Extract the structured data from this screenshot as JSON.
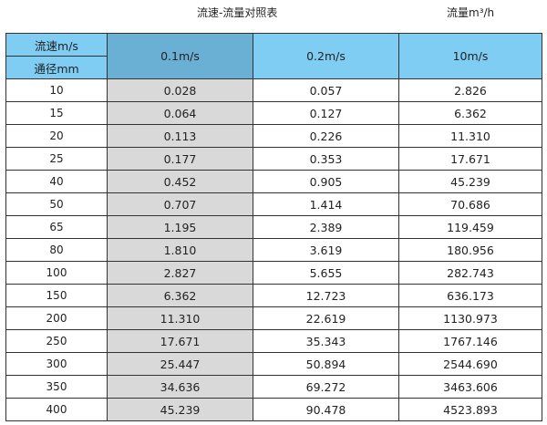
{
  "title": "流速-流量对照表",
  "unit_label": "流量m³/h",
  "colors": {
    "header": "#7fcdf3",
    "header_highlight": "#6aafd4",
    "column_highlight": "#d9d9d9"
  },
  "header": {
    "velocity_label": "流速m/s",
    "diameter_label": "通径mm",
    "columns": [
      "0.1m/s",
      "0.2m/s",
      "10m/s"
    ]
  },
  "rows": [
    [
      "10",
      "0.028",
      "0.057",
      "2.826"
    ],
    [
      "15",
      "0.064",
      "0.127",
      "6.362"
    ],
    [
      "20",
      "0.113",
      "0.226",
      "11.310"
    ],
    [
      "25",
      "0.177",
      "0.353",
      "17.671"
    ],
    [
      "40",
      "0.452",
      "0.905",
      "45.239"
    ],
    [
      "50",
      "0.707",
      "1.414",
      "70.686"
    ],
    [
      "65",
      "1.195",
      "2.389",
      "119.459"
    ],
    [
      "80",
      "1.810",
      "3.619",
      "180.956"
    ],
    [
      "100",
      "2.827",
      "5.655",
      "282.743"
    ],
    [
      "150",
      "6.362",
      "12.723",
      "636.173"
    ],
    [
      "200",
      "11.310",
      "22.619",
      "1130.973"
    ],
    [
      "250",
      "17.671",
      "35.343",
      "1767.146"
    ],
    [
      "300",
      "25.447",
      "50.894",
      "2544.690"
    ],
    [
      "350",
      "34.636",
      "69.272",
      "3463.606"
    ],
    [
      "400",
      "45.239",
      "90.478",
      "4523.893"
    ]
  ]
}
